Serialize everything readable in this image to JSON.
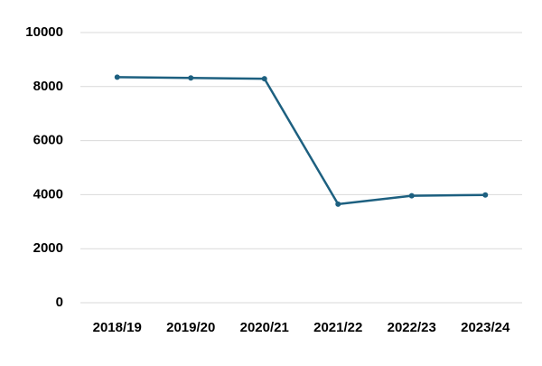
{
  "chart_data": {
    "type": "line",
    "categories": [
      "2018/19",
      "2019/20",
      "2020/21",
      "2021/22",
      "2022/23",
      "2023/24"
    ],
    "values": [
      8350,
      8320,
      8290,
      3650,
      3960,
      3990
    ],
    "color": "#1d6080",
    "ylim": [
      0,
      10000
    ],
    "yticks": [
      0,
      2000,
      4000,
      6000,
      8000,
      10000
    ],
    "grid": true
  }
}
